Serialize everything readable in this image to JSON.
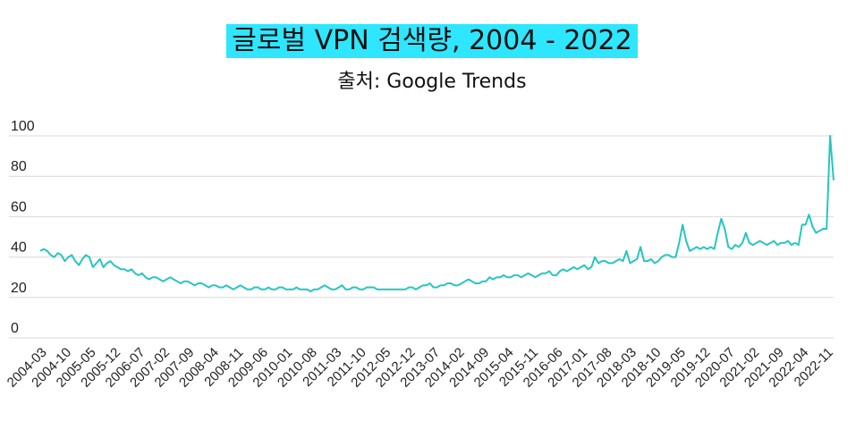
{
  "header": {
    "title": "글로벌 VPN 검색량, 2004 - 2022",
    "subtitle": "출처: Google Trends"
  },
  "colors": {
    "line": "#26c6c0",
    "title_bg": "#2ee6ff",
    "grid": "#d9d9d9"
  },
  "chart_data": {
    "type": "line",
    "title": "글로벌 VPN 검색량, 2004 - 2022",
    "subtitle": "출처: Google Trends",
    "xlabel": "",
    "ylabel": "",
    "ylim": [
      0,
      100
    ],
    "yticks": [
      0,
      20,
      40,
      60,
      80,
      100
    ],
    "grid": true,
    "xtick_labels": [
      "2004-03",
      "2004-10",
      "2005-05",
      "2005-12",
      "2006-07",
      "2007-02",
      "2007-09",
      "2008-04",
      "2008-11",
      "2009-06",
      "2010-01",
      "2010-08",
      "2011-03",
      "2011-10",
      "2012-05",
      "2012-12",
      "2013-07",
      "2014-02",
      "2014-09",
      "2015-04",
      "2015-11",
      "2016-06",
      "2017-01",
      "2017-08",
      "2018-03",
      "2018-10",
      "2019-05",
      "2019-12",
      "2020-07",
      "2021-02",
      "2021-09",
      "2022-04",
      "2022-11"
    ],
    "series": [
      {
        "start": "2004-01",
        "values": [
          43,
          44,
          43,
          41,
          40,
          42,
          41,
          38,
          40,
          41,
          38,
          36,
          39,
          41,
          40,
          35,
          37,
          39,
          35,
          37,
          38,
          36,
          35,
          34,
          34,
          33,
          34,
          32,
          31,
          32,
          30,
          29,
          30,
          30,
          29,
          28,
          29,
          30,
          29,
          28,
          27,
          28,
          28,
          27,
          26,
          27,
          27,
          26,
          25,
          26,
          26,
          25,
          25,
          26,
          25,
          24,
          25,
          26,
          25,
          24,
          24,
          25,
          25,
          24,
          24,
          25,
          24,
          24,
          25,
          25,
          24,
          24,
          24,
          25,
          24,
          24,
          24,
          23,
          24,
          24,
          25,
          26,
          25,
          24,
          24,
          25,
          26,
          24,
          24,
          25,
          25,
          24,
          24,
          25,
          25,
          25,
          24,
          24,
          24,
          24,
          24,
          24,
          24,
          24,
          24,
          25,
          25,
          24,
          25,
          26,
          26,
          27,
          25,
          25,
          26,
          26,
          27,
          27,
          26,
          26,
          27,
          28,
          29,
          28,
          27,
          27,
          28,
          28,
          30,
          29,
          30,
          30,
          31,
          30,
          30,
          31,
          31,
          30,
          31,
          32,
          31,
          30,
          31,
          32,
          32,
          33,
          31,
          31,
          33,
          34,
          33,
          34,
          35,
          34,
          35,
          36,
          34,
          35,
          40,
          37,
          38,
          38,
          37,
          37,
          38,
          39,
          38,
          43,
          37,
          38,
          39,
          45,
          38,
          38,
          39,
          37,
          38,
          40,
          41,
          41,
          40,
          40,
          47,
          56,
          48,
          43,
          44,
          45,
          44,
          45,
          44,
          45,
          44,
          52,
          59,
          54,
          45,
          44,
          46,
          45,
          47,
          52,
          47,
          46,
          47,
          48,
          47,
          46,
          47,
          48,
          46,
          47,
          47,
          48,
          46,
          47,
          46,
          56,
          56,
          61,
          55,
          52,
          53,
          54,
          54,
          100,
          78
        ]
      }
    ]
  }
}
